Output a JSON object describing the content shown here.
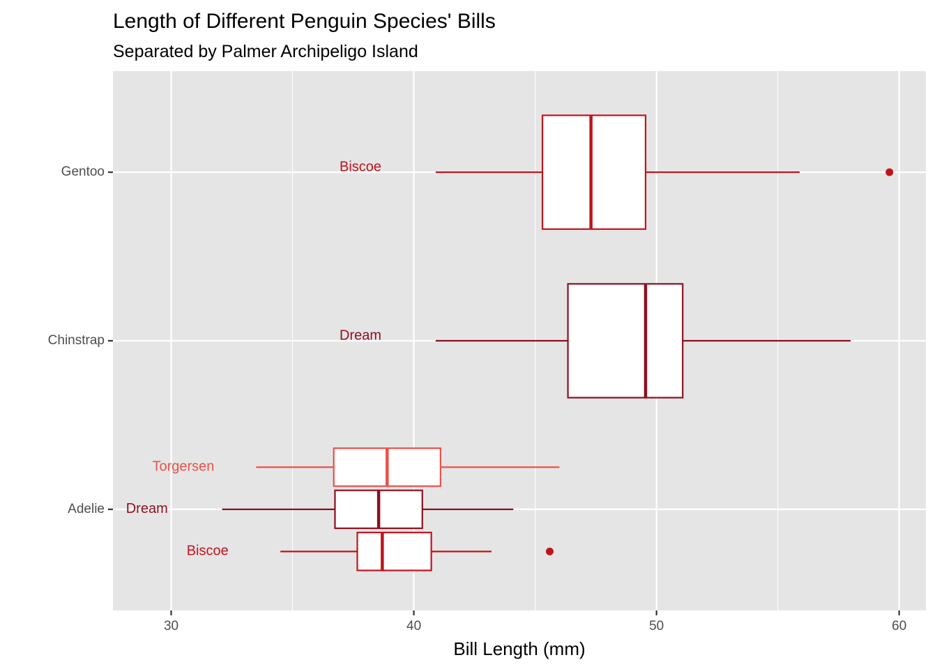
{
  "chart_data": {
    "type": "boxplot",
    "title": "Length of Different Penguin Species' Bills",
    "subtitle": "Separated by Palmer Archipeligo Island",
    "xlabel": "Bill Length (mm)",
    "ylabel": "",
    "xlim": [
      27.6,
      61.1
    ],
    "xticks": [
      30,
      40,
      50,
      60
    ],
    "categories": [
      "Adelie",
      "Chinstrap",
      "Gentoo"
    ],
    "grid": true,
    "legend": "none",
    "colors": {
      "Biscoe": "#c0141c",
      "Dream": "#8c1021",
      "Torgersen": "#e8524a",
      "panel": "#e5e5e5",
      "grid": "#ffffff",
      "box_fill": "#ffffff"
    },
    "boxes": [
      {
        "species": "Gentoo",
        "island": "Biscoe",
        "offset": 0,
        "whisker_low": 40.9,
        "q1": 45.3,
        "median": 47.3,
        "q3": 49.55,
        "whisker_high": 55.9,
        "outliers": [
          59.6
        ],
        "label_x": 37.8
      },
      {
        "species": "Chinstrap",
        "island": "Dream",
        "offset": 0,
        "whisker_low": 40.9,
        "q1": 46.35,
        "median": 49.55,
        "q3": 51.08,
        "whisker_high": 58.0,
        "outliers": [],
        "label_x": 37.8
      },
      {
        "species": "Adelie",
        "island": "Torgersen",
        "offset": 0.25,
        "whisker_low": 33.5,
        "q1": 36.7,
        "median": 38.9,
        "q3": 41.1,
        "whisker_high": 46.0,
        "outliers": [],
        "label_x": 30.5
      },
      {
        "species": "Adelie",
        "island": "Dream",
        "offset": 0,
        "whisker_low": 32.1,
        "q1": 36.75,
        "median": 38.55,
        "q3": 40.35,
        "whisker_high": 44.1,
        "outliers": [],
        "label_x": 29.0
      },
      {
        "species": "Adelie",
        "island": "Biscoe",
        "offset": -0.25,
        "whisker_low": 34.5,
        "q1": 37.67,
        "median": 38.7,
        "q3": 40.72,
        "whisker_high": 43.2,
        "outliers": [
          45.6
        ],
        "label_x": 31.5
      }
    ]
  }
}
